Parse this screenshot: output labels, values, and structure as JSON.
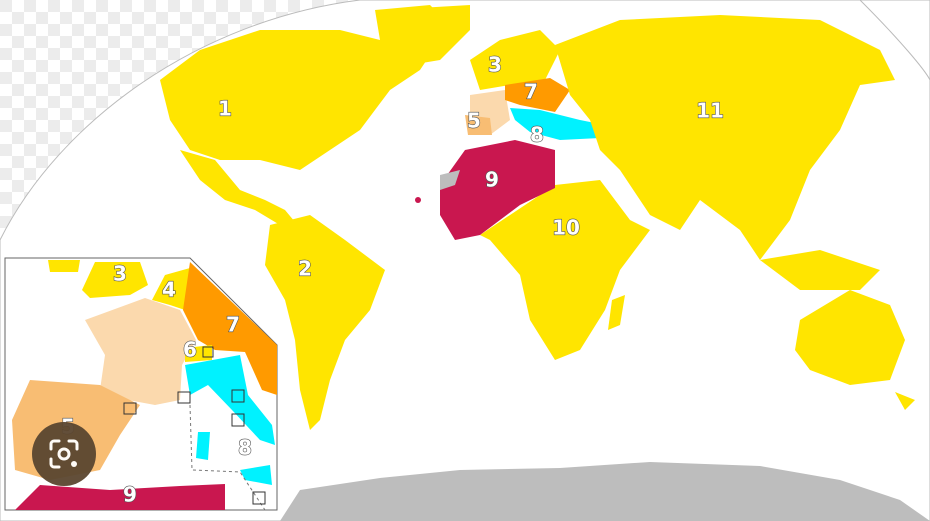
{
  "colors": {
    "zone_yellow": "#ffe500",
    "zone_orange": "#ff9a00",
    "zone_crimson": "#c9174f",
    "zone_cyan": "#00f2ff",
    "zone_peach": "#fbd9ad",
    "zone_light_orange": "#f8bd73",
    "no_data_gray": "#bdbdbd"
  },
  "map": {
    "labels": [
      "1",
      "2",
      "3",
      "5",
      "7",
      "8",
      "9",
      "10",
      "11"
    ]
  },
  "inset": {
    "labels": [
      "3",
      "4",
      "7",
      "6",
      "5",
      "8",
      "9"
    ]
  },
  "lens_button": {
    "icon": "google-lens-icon"
  }
}
